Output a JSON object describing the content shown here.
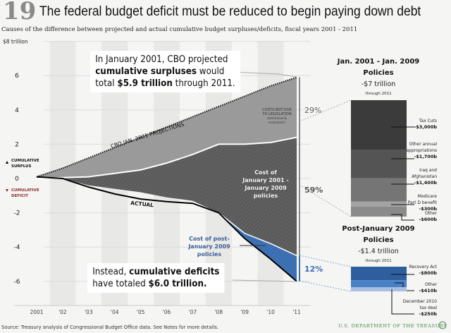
{
  "header": {
    "number": "19",
    "title": "The federal budget deficit must be reduced to begin paying down debt",
    "subtitle": "Causes of the difference between projected and actual cumulative budget surpluses/deficits, fiscal years 2001 - 2011"
  },
  "chart_data": [
    {
      "type": "area",
      "ylabel": "$8 trillion",
      "ylim": [
        -7,
        8
      ],
      "y_ticks": [
        "$8 trillion",
        "6",
        "4",
        "2",
        "0",
        "-2",
        "-4",
        "-6"
      ],
      "y_tick_values": [
        8,
        6,
        4,
        2,
        0,
        -2,
        -4,
        -6
      ],
      "x": [
        2001,
        2002,
        2003,
        2004,
        2005,
        2006,
        2007,
        2008,
        2009,
        2010,
        2011
      ],
      "x_ticks": [
        "2001",
        "'02",
        "'03",
        "'04",
        "'05",
        "'06",
        "'07",
        "'08",
        "'09",
        "'10",
        "'11"
      ],
      "series": [
        {
          "name": "CBO JAN. 2001 PROJECTIONS",
          "values": [
            0.1,
            0.6,
            1.2,
            1.8,
            2.4,
            3.0,
            3.6,
            4.2,
            4.8,
            5.4,
            5.9
          ]
        },
        {
          "name": "",
          "values": [
            0.0,
            0.05,
            0.1,
            0.3,
            0.5,
            0.9,
            1.4,
            2.0,
            2.0,
            2.1,
            2.4
          ]
        },
        {
          "name": "",
          "values": [
            0.1,
            0.0,
            -0.4,
            -0.6,
            -0.8,
            -1.1,
            -1.3,
            -2.0,
            -3.2,
            -3.8,
            -4.5
          ]
        },
        {
          "name": "ACTUAL",
          "values": [
            0.1,
            0.0,
            -0.5,
            -0.9,
            -1.2,
            -1.35,
            -1.45,
            -2.0,
            -3.5,
            -4.7,
            -6.0
          ]
        }
      ],
      "area_labels": {
        "technical": "COSTS NOT DUE TO LEGISLATION",
        "technical_note": "(technical & economic)",
        "policies_2001": "Cost of January 2001 - January 2009 policies",
        "policies_2009": "Cost of post-January 2009 policies"
      },
      "shares": {
        "technical": "29%",
        "policies_2001": "59%",
        "policies_2009": "12%"
      },
      "legend": {
        "surplus": "CUMULATIVE SURPLUS",
        "deficit": "CUMULATIVE DEFICIT"
      },
      "colors": {
        "technical": "#9a9a9a",
        "policies_2001": "#5a5a5a",
        "policies_2009": "#3d6fb3",
        "deficit_label": "#8b2b2b",
        "policy_text": "#3d5f95"
      }
    },
    {
      "type": "bar",
      "title": "Jan. 2001 - Jan. 2009 Policies",
      "total": "-$7 trillion",
      "note": "through 2011",
      "categories": [
        "Tax Cuts",
        "Other annual appropriations",
        "Iraq and Afghanistan",
        "Medicare Part D benefit",
        "Other"
      ],
      "values": [
        -3000,
        -1700,
        -1400,
        -300,
        -600
      ],
      "labels": [
        "-$3,000b",
        "-$1,700b",
        "-$1,400b",
        "-$300b",
        "-$600b"
      ],
      "colors": [
        "#3b3b3b",
        "#545454",
        "#757575",
        "#a3a3a3",
        "#8a8a8a"
      ]
    },
    {
      "type": "bar",
      "title": "Post-January 2009 Policies",
      "total": "-$1.4 trillion",
      "note": "through 2011",
      "categories": [
        "Recovery Act",
        "Other",
        "December 2010 tax deal"
      ],
      "values": [
        -800,
        -410,
        -250
      ],
      "labels": [
        "-$800b",
        "-$410b",
        "-$250b"
      ],
      "colors": [
        "#2f5e9e",
        "#4a80c6",
        "#a9bfe2"
      ]
    }
  ],
  "callouts": {
    "top": [
      "In January 2001, CBO projected",
      "cumulative surpluses",
      " would",
      "total ",
      "$5.9 trillion",
      " through 2011."
    ],
    "bottom": [
      "Instead, ",
      "cumulative deficits",
      "have totaled ",
      "$6.0 trillion."
    ]
  },
  "footer": {
    "source": "Source: Treasury analysis of Congressional Budget Office data. See Notes for more details.",
    "agency": "U.S. DEPARTMENT OF THE TREASURY"
  }
}
